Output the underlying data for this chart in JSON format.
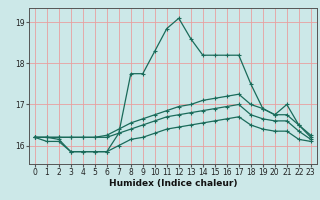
{
  "title": "",
  "xlabel": "Humidex (Indice chaleur)",
  "bg_color": "#cce8e8",
  "grid_color": "#e8a0a0",
  "line_color": "#1a6b5a",
  "xlim": [
    -0.5,
    23.5
  ],
  "ylim": [
    15.55,
    19.35
  ],
  "yticks": [
    16,
    17,
    18,
    19
  ],
  "xticks": [
    0,
    1,
    2,
    3,
    4,
    5,
    6,
    7,
    8,
    9,
    10,
    11,
    12,
    13,
    14,
    15,
    16,
    17,
    18,
    19,
    20,
    21,
    22,
    23
  ],
  "lines": [
    {
      "x": [
        0,
        1,
        2,
        3,
        4,
        5,
        6,
        7,
        8,
        9,
        10,
        11,
        12,
        13,
        14,
        15,
        16,
        17,
        18,
        19,
        20,
        21,
        22,
        23
      ],
      "y": [
        16.2,
        16.2,
        16.15,
        15.85,
        15.85,
        15.85,
        15.85,
        16.3,
        17.75,
        17.75,
        18.3,
        18.85,
        19.1,
        18.6,
        18.2,
        18.2,
        18.2,
        18.2,
        17.5,
        16.9,
        16.75,
        17.0,
        16.5,
        16.2
      ]
    },
    {
      "x": [
        0,
        1,
        2,
        3,
        4,
        5,
        6,
        7,
        8,
        9,
        10,
        11,
        12,
        13,
        14,
        15,
        16,
        17,
        18,
        19,
        20,
        21,
        22,
        23
      ],
      "y": [
        16.2,
        16.2,
        16.2,
        16.2,
        16.2,
        16.2,
        16.25,
        16.4,
        16.55,
        16.65,
        16.75,
        16.85,
        16.95,
        17.0,
        17.1,
        17.15,
        17.2,
        17.25,
        17.0,
        16.9,
        16.75,
        16.75,
        16.5,
        16.25
      ]
    },
    {
      "x": [
        0,
        1,
        2,
        3,
        4,
        5,
        6,
        7,
        8,
        9,
        10,
        11,
        12,
        13,
        14,
        15,
        16,
        17,
        18,
        19,
        20,
        21,
        22,
        23
      ],
      "y": [
        16.2,
        16.2,
        16.2,
        16.2,
        16.2,
        16.2,
        16.2,
        16.3,
        16.4,
        16.5,
        16.6,
        16.7,
        16.75,
        16.8,
        16.85,
        16.9,
        16.95,
        17.0,
        16.75,
        16.65,
        16.6,
        16.6,
        16.35,
        16.15
      ]
    },
    {
      "x": [
        0,
        1,
        2,
        3,
        4,
        5,
        6,
        7,
        8,
        9,
        10,
        11,
        12,
        13,
        14,
        15,
        16,
        17,
        18,
        19,
        20,
        21,
        22,
        23
      ],
      "y": [
        16.2,
        16.1,
        16.1,
        15.85,
        15.85,
        15.85,
        15.85,
        16.0,
        16.15,
        16.2,
        16.3,
        16.4,
        16.45,
        16.5,
        16.55,
        16.6,
        16.65,
        16.7,
        16.5,
        16.4,
        16.35,
        16.35,
        16.15,
        16.1
      ]
    }
  ],
  "label_fontsize": 5.5,
  "xlabel_fontsize": 6.5,
  "marker_size": 2.2,
  "lw": 0.9
}
